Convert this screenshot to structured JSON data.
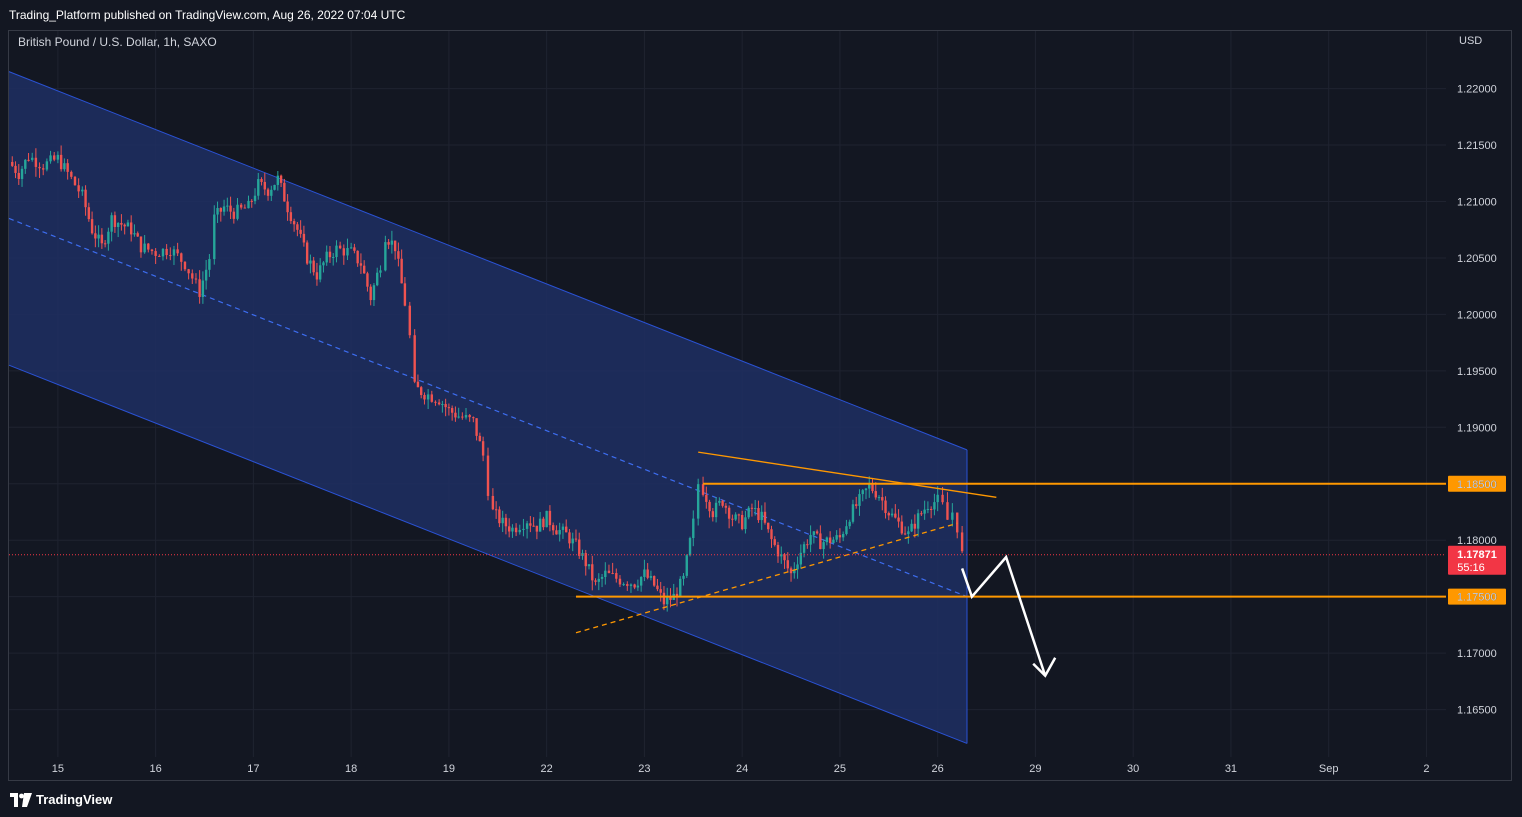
{
  "header": {
    "published_text": "Trading_Platform published on TradingView.com, Aug 26, 2022 07:04 UTC"
  },
  "chart_info": {
    "symbol_title": "British Pound / U.S. Dollar, 1h, SAXO",
    "currency": "USD"
  },
  "footer": {
    "brand": "TradingView"
  },
  "chart_data": {
    "type": "candlestick",
    "y_axis": {
      "range": [
        1.1608,
        1.2251
      ],
      "ticks": [
        "1.16500",
        "1.17000",
        "1.17500",
        "1.18000",
        "1.18500",
        "1.19000",
        "1.19500",
        "1.20000",
        "1.20500",
        "1.21000",
        "1.21500",
        "1.22000"
      ],
      "tick_values": [
        1.165,
        1.17,
        1.175,
        1.18,
        1.185,
        1.19,
        1.195,
        1.2,
        1.205,
        1.21,
        1.215,
        1.22
      ]
    },
    "x_axis": {
      "range": [
        14.5,
        29.2
      ],
      "ticks": [
        "15",
        "16",
        "17",
        "18",
        "19",
        "22",
        "23",
        "24",
        "25",
        "26",
        "29",
        "30",
        "31",
        "Sep",
        "2"
      ],
      "tick_positions": [
        15,
        16,
        17,
        18,
        19,
        20,
        21,
        22,
        23,
        24,
        25,
        26,
        27,
        28,
        29
      ]
    },
    "current_price": {
      "value": "1.17871",
      "numeric": 1.17871,
      "countdown": "55:16",
      "color": "#f23645"
    },
    "horizontal_levels": [
      {
        "label": "1.18500",
        "value": 1.185,
        "color": "#ff9800"
      },
      {
        "label": "1.17500",
        "value": 1.175,
        "color": "#ff9800"
      }
    ],
    "channel": {
      "upper": [
        [
          14.5,
          1.2215
        ],
        [
          24.3,
          1.188
        ]
      ],
      "lower": [
        [
          14.5,
          1.1955
        ],
        [
          24.3,
          1.162
        ]
      ],
      "mid": [
        [
          14.5,
          1.2085
        ],
        [
          24.3,
          1.175
        ]
      ],
      "fill": "#1e2f63"
    },
    "trendlines": [
      {
        "from": [
          21.55,
          1.1878
        ],
        "to": [
          24.6,
          1.1838
        ],
        "style": "solid",
        "color": "#ff9800"
      },
      {
        "from": [
          20.3,
          1.1718
        ],
        "to": [
          24.2,
          1.1815
        ],
        "style": "dashed",
        "color": "#ff9800"
      }
    ],
    "support_segment": {
      "from": [
        20.3,
        1.175
      ],
      "to": [
        24.2,
        1.175
      ]
    },
    "projection": {
      "points": [
        [
          24.25,
          1.1775
        ],
        [
          24.35,
          1.175
        ],
        [
          24.7,
          1.1785
        ],
        [
          25.1,
          1.168
        ]
      ],
      "color": "#ffffff"
    },
    "price_path": [
      [
        14.5,
        1.2135
      ],
      [
        14.6,
        1.2125
      ],
      [
        14.7,
        1.214
      ],
      [
        14.85,
        1.2132
      ],
      [
        15.0,
        1.2138
      ],
      [
        15.1,
        1.2125
      ],
      [
        15.25,
        1.2105
      ],
      [
        15.35,
        1.2075
      ],
      [
        15.45,
        1.206
      ],
      [
        15.55,
        1.2085
      ],
      [
        15.65,
        1.208
      ],
      [
        15.75,
        1.2075
      ],
      [
        15.85,
        1.206
      ],
      [
        16.0,
        1.2055
      ],
      [
        16.15,
        1.2058
      ],
      [
        16.3,
        1.2045
      ],
      [
        16.45,
        1.202
      ],
      [
        16.55,
        1.205
      ],
      [
        16.6,
        1.2085
      ],
      [
        16.7,
        1.2095
      ],
      [
        16.8,
        1.209
      ],
      [
        16.95,
        1.2095
      ],
      [
        17.05,
        1.2115
      ],
      [
        17.15,
        1.211
      ],
      [
        17.25,
        1.212
      ],
      [
        17.35,
        1.2095
      ],
      [
        17.45,
        1.2075
      ],
      [
        17.55,
        1.205
      ],
      [
        17.65,
        1.2035
      ],
      [
        17.75,
        1.205
      ],
      [
        17.85,
        1.2058
      ],
      [
        18.0,
        1.2055
      ],
      [
        18.1,
        1.2045
      ],
      [
        18.2,
        1.2015
      ],
      [
        18.3,
        1.2045
      ],
      [
        18.35,
        1.207
      ],
      [
        18.45,
        1.206
      ],
      [
        18.55,
        1.201
      ],
      [
        18.6,
        1.198
      ],
      [
        18.65,
        1.1935
      ],
      [
        18.75,
        1.193
      ],
      [
        18.9,
        1.1925
      ],
      [
        19.0,
        1.1915
      ],
      [
        19.1,
        1.191
      ],
      [
        19.25,
        1.1905
      ],
      [
        19.35,
        1.1875
      ],
      [
        19.4,
        1.1845
      ],
      [
        19.45,
        1.1825
      ],
      [
        19.55,
        1.1815
      ],
      [
        19.65,
        1.181
      ],
      [
        19.8,
        1.1818
      ],
      [
        19.9,
        1.1812
      ],
      [
        20.0,
        1.182
      ],
      [
        20.1,
        1.181
      ],
      [
        20.2,
        1.1805
      ],
      [
        20.3,
        1.1795
      ],
      [
        20.4,
        1.178
      ],
      [
        20.5,
        1.176
      ],
      [
        20.6,
        1.177
      ],
      [
        20.75,
        1.1765
      ],
      [
        20.9,
        1.1762
      ],
      [
        21.0,
        1.177
      ],
      [
        21.1,
        1.176
      ],
      [
        21.2,
        1.1745
      ],
      [
        21.3,
        1.175
      ],
      [
        21.4,
        1.1765
      ],
      [
        21.5,
        1.1815
      ],
      [
        21.55,
        1.185
      ],
      [
        21.6,
        1.1845
      ],
      [
        21.7,
        1.1825
      ],
      [
        21.8,
        1.1835
      ],
      [
        21.9,
        1.182
      ],
      [
        22.0,
        1.1815
      ],
      [
        22.1,
        1.1828
      ],
      [
        22.2,
        1.182
      ],
      [
        22.3,
        1.18
      ],
      [
        22.4,
        1.1785
      ],
      [
        22.5,
        1.177
      ],
      [
        22.6,
        1.179
      ],
      [
        22.7,
        1.1805
      ],
      [
        22.8,
        1.1798
      ],
      [
        22.9,
        1.18
      ],
      [
        23.0,
        1.1802
      ],
      [
        23.1,
        1.1822
      ],
      [
        23.2,
        1.1835
      ],
      [
        23.3,
        1.1848
      ],
      [
        23.4,
        1.184
      ],
      [
        23.5,
        1.1825
      ],
      [
        23.6,
        1.1815
      ],
      [
        23.7,
        1.1805
      ],
      [
        23.8,
        1.182
      ],
      [
        23.9,
        1.1832
      ],
      [
        24.0,
        1.1835
      ],
      [
        24.05,
        1.183
      ],
      [
        24.1,
        1.1818
      ],
      [
        24.15,
        1.1825
      ],
      [
        24.2,
        1.1812
      ],
      [
        24.25,
        1.1787
      ]
    ]
  }
}
